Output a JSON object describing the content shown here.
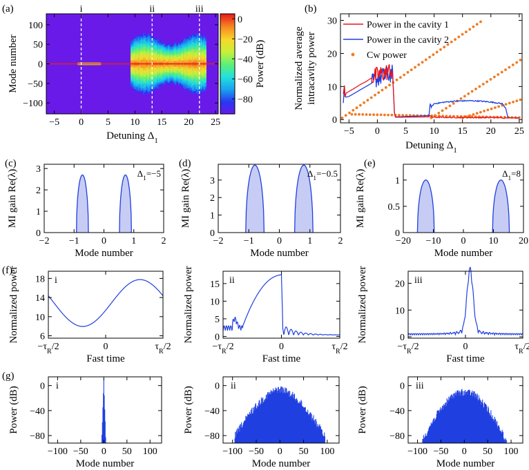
{
  "colors": {
    "red": "#e8141c",
    "blue": "#1f3fe0",
    "orange": "#f07a22",
    "mi_fill": "#c6ccf4",
    "cmap": [
      "#6a1ae8",
      "#2a35f2",
      "#1aa0f0",
      "#22e0e0",
      "#5cf078",
      "#c8f03a",
      "#f8d82a",
      "#f88a22",
      "#e8201c"
    ]
  },
  "chart_data": [
    {
      "id": "a",
      "type": "heatmap",
      "panel_label": "(a)",
      "title": "",
      "xlabel": "Detuning Δ₁",
      "ylabel": "Mode number",
      "xlim": [
        -6.5,
        25.5
      ],
      "ylim": [
        -128,
        128
      ],
      "xticks": [
        -5,
        0,
        5,
        10,
        15,
        20,
        25
      ],
      "yticks": [
        -100,
        -50,
        0,
        50,
        100
      ],
      "colorbar": {
        "label": "Power (dB)",
        "range": [
          -95,
          5
        ],
        "ticks": [
          0,
          -20,
          -40,
          -60,
          -80
        ]
      },
      "markers": [
        {
          "x": 0,
          "label": "i"
        },
        {
          "x": 13.2,
          "label": "ii"
        },
        {
          "x": 22,
          "label": "iii"
        }
      ],
      "regions": [
        {
          "x_start": -0.8,
          "x_end": 3.8,
          "half_width": 3
        },
        {
          "x_start": 9.2,
          "x_end": 23.2,
          "half_width": 80
        }
      ]
    },
    {
      "id": "b",
      "type": "line",
      "panel_label": "(b)",
      "xlabel": "Detuning Δ₁",
      "ylabel_lines": [
        "Normalized average",
        "intracavity power"
      ],
      "xlim": [
        -6.5,
        25.5
      ],
      "ylim": [
        -1,
        32
      ],
      "xticks": [
        -5,
        0,
        5,
        10,
        15,
        20,
        25
      ],
      "yticks": [
        0,
        10,
        20,
        30
      ],
      "legend": [
        "Power in the cavity 1",
        "Power in the cavity 2",
        "Cw power"
      ],
      "series": [
        {
          "name": "Power in the cavity 1",
          "x": [
            -6,
            -5.8,
            -5.7,
            -5.5,
            -5,
            -4,
            -3,
            -2,
            -1,
            0,
            1,
            2,
            2.6,
            2.8,
            3.0,
            3.2,
            9.1,
            9.2,
            9.5,
            10,
            15,
            20,
            21.8,
            22,
            23,
            24,
            25
          ],
          "y": [
            7.8,
            10.3,
            6.8,
            8.0,
            8.5,
            9.5,
            10.6,
            11.5,
            12.6,
            13.4,
            14.0,
            14.6,
            15.0,
            10.0,
            2.0,
            0.7,
            0.8,
            1.3,
            0.8,
            0.7,
            0.6,
            0.6,
            0.6,
            0.5,
            0.5,
            0.5,
            0.4
          ]
        },
        {
          "name": "Power in the cavity 2",
          "x": [
            -6,
            -5.8,
            -5.7,
            -5.5,
            -5,
            -4,
            -3,
            -2,
            -1,
            0,
            1,
            2,
            2.6,
            2.8,
            3.0,
            3.2,
            9.1,
            9.3,
            9.5,
            10,
            12,
            14,
            16,
            18,
            20,
            22,
            22.6,
            23,
            24,
            25
          ],
          "y": [
            5.0,
            10.0,
            7.0,
            6.8,
            7.0,
            8.0,
            9.0,
            10.0,
            11.0,
            12.5,
            13.0,
            13.5,
            14.0,
            10.0,
            2.0,
            0.8,
            1.2,
            4.8,
            3.8,
            4.8,
            5.3,
            5.6,
            5.7,
            5.6,
            5.3,
            4.8,
            3.5,
            0.6,
            0.5,
            0.5
          ]
        },
        {
          "name": "Cw power",
          "marker": "dot",
          "branches": [
            {
              "x_from": -6.2,
              "x_to": 18.2,
              "y_from": 0.5,
              "y_to": 29.6
            },
            {
              "x_from": -4.5,
              "x_to": 25,
              "y_from": 1.6,
              "y_to": 0.6
            },
            {
              "x_from": 9.5,
              "x_to": 25.2,
              "y_from": 0.5,
              "y_to": 18.0
            },
            {
              "x_from": 15,
              "x_to": 25.2,
              "y_from": 0.5,
              "y_to": 6.0
            }
          ]
        }
      ]
    },
    {
      "id": "c",
      "type": "area",
      "panel_label": "(c)",
      "annotation": "Δ₁=−5",
      "xlabel": "Mode number",
      "ylabel": "MI gain Re(λ)",
      "xlim": [
        -2,
        2
      ],
      "ylim": [
        0,
        3.2
      ],
      "xticks": [
        -2,
        -1,
        0,
        1,
        2
      ],
      "yticks": [
        0,
        1,
        2,
        3
      ],
      "lobes": [
        {
          "center": -0.72,
          "half_width": 0.2,
          "peak": 2.7
        },
        {
          "center": 0.72,
          "half_width": 0.2,
          "peak": 2.7
        }
      ]
    },
    {
      "id": "d",
      "type": "area",
      "panel_label": "(d)",
      "annotation": "Δ₁=−0.5",
      "xlabel": "Mode number",
      "ylabel": "MI gain Re(λ)",
      "xlim": [
        -2,
        2
      ],
      "ylim": [
        0,
        3.9
      ],
      "xticks": [
        -2,
        -1,
        0,
        1,
        2
      ],
      "yticks": [
        0,
        1,
        2,
        3
      ],
      "lobes": [
        {
          "center": -0.8,
          "half_width": 0.3,
          "peak": 3.85
        },
        {
          "center": 0.8,
          "half_width": 0.3,
          "peak": 3.85
        }
      ]
    },
    {
      "id": "e",
      "type": "area",
      "panel_label": "(e)",
      "annotation": "Δ₁=8",
      "xlabel": "Mode number",
      "ylabel": "MI gain Re(λ)",
      "xlim": [
        -20,
        20
      ],
      "ylim": [
        0,
        1.3
      ],
      "xticks": [
        -20,
        -10,
        0,
        10,
        20
      ],
      "yticks": [
        0,
        0.5,
        1.0
      ],
      "lobes": [
        {
          "center": -12.5,
          "half_width": 2.8,
          "peak": 1.0
        },
        {
          "center": 12.5,
          "half_width": 2.8,
          "peak": 1.0
        }
      ]
    },
    {
      "id": "f1",
      "type": "line",
      "panel_label": "(f)",
      "annotation": "i",
      "xlabel": "Fast time",
      "ylabel": "Normalized  power",
      "xticklabels": [
        "−τ_R/2",
        "0",
        "τ_R/2"
      ],
      "ylim": [
        5.5,
        19.5
      ],
      "yticks": [
        6,
        10,
        14,
        18
      ],
      "profile": {
        "kind": "sine",
        "mean": 12.85,
        "amplitude": 4.9,
        "peak_t": 0.3
      }
    },
    {
      "id": "f2",
      "type": "line",
      "panel_label": "",
      "annotation": "ii",
      "xlabel": "Fast time",
      "ylabel": "Normalized  power",
      "xticklabels": [
        "−τ_R/2",
        "0",
        "τ_R/2"
      ],
      "ylim": [
        -0.5,
        18.5
      ],
      "yticks": [
        0,
        5,
        10,
        15
      ],
      "profile": {
        "kind": "dark_pulse",
        "rise_start": -0.33,
        "peak_t": 0.0,
        "peak": 17.5
      }
    },
    {
      "id": "f3",
      "type": "line",
      "panel_label": "",
      "annotation": "iii",
      "xlabel": "Fast time",
      "ylabel": "Normalized  power",
      "xticklabels": [
        "−τ_R/2",
        "0",
        "τ_R/2"
      ],
      "ylim": [
        -0.5,
        24.5
      ],
      "yticks": [
        0,
        10,
        20
      ],
      "profile": {
        "kind": "bright_pulse",
        "peak_t": 0.04,
        "peak": 22.5
      }
    },
    {
      "id": "g1",
      "type": "bar",
      "panel_label": "(g)",
      "annotation": "i",
      "xlabel": "Mode number",
      "ylabel": "Power (dB)",
      "xlim": [
        -120,
        125
      ],
      "ylim": [
        -92,
        14
      ],
      "xticks": [
        -100,
        -50,
        0,
        50,
        100
      ],
      "yticks": [
        0,
        -40,
        -80
      ],
      "spectrum": {
        "kind": "narrow",
        "half_width": 4,
        "peak": 10
      }
    },
    {
      "id": "g2",
      "type": "bar",
      "panel_label": "",
      "annotation": "ii",
      "xlabel": "Mode number",
      "ylabel": "Power (dB)",
      "xlim": [
        -120,
        125
      ],
      "ylim": [
        -92,
        14
      ],
      "xticks": [
        -100,
        -50,
        0,
        50,
        100
      ],
      "yticks": [
        0,
        -40,
        -80
      ],
      "spectrum": {
        "kind": "broad",
        "half_width": 95,
        "peak": 0
      }
    },
    {
      "id": "g3",
      "type": "bar",
      "panel_label": "",
      "annotation": "iii",
      "xlabel": "Mode number",
      "ylabel": "Power (dB)",
      "xlim": [
        -120,
        125
      ],
      "ylim": [
        -92,
        14
      ],
      "xticks": [
        -100,
        -50,
        0,
        50,
        100
      ],
      "yticks": [
        0,
        -40,
        -80
      ],
      "spectrum": {
        "kind": "broad_twin",
        "half_width": 90,
        "peak": -5
      }
    }
  ]
}
